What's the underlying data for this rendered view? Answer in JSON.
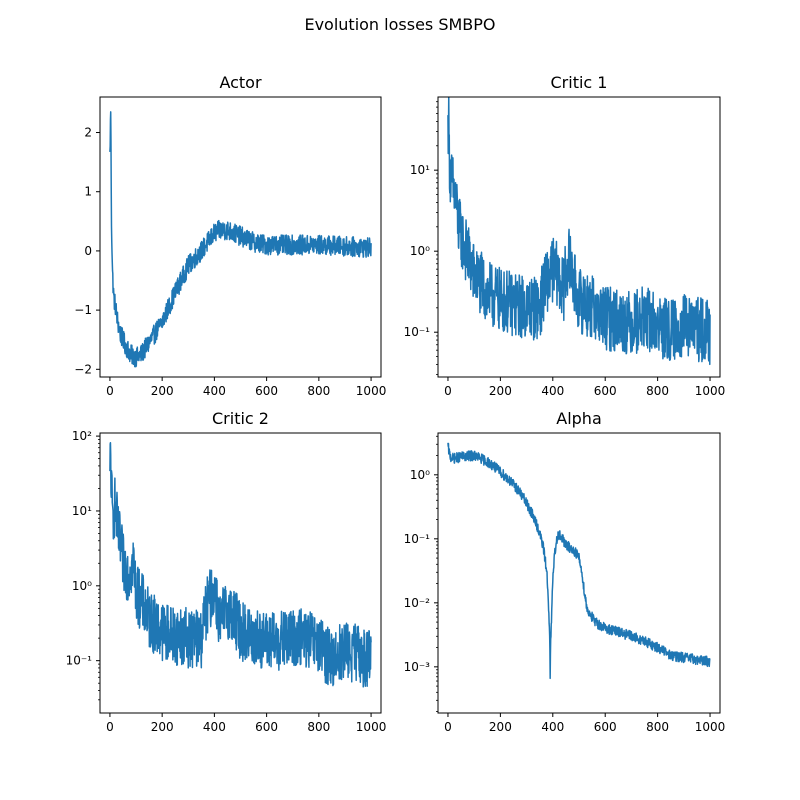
{
  "figure": {
    "suptitle": "Evolution losses SMBPO"
  },
  "colors": {
    "series": "#1f77b4",
    "axes": "#000000",
    "background": "#ffffff"
  },
  "chart_data": [
    {
      "type": "line",
      "title": "Actor",
      "xlabel": "",
      "ylabel": "",
      "yscale": "linear",
      "xlim": [
        -38,
        1038
      ],
      "ylim": [
        -2.13,
        2.6
      ],
      "xticks": [
        0,
        200,
        400,
        600,
        800,
        1000
      ],
      "xtick_labels": [
        "0",
        "200",
        "400",
        "600",
        "800",
        "1000"
      ],
      "yticks": [
        -2,
        -1,
        0,
        1,
        2
      ],
      "ytick_labels": [
        "−2",
        "−1",
        "0",
        "1",
        "2"
      ],
      "grid": false,
      "noise": 0.12,
      "series": [
        {
          "x": [
            0,
            3,
            6,
            10,
            15,
            20,
            30,
            40,
            50,
            60,
            80,
            100,
            120,
            150,
            200,
            250,
            300,
            350,
            400,
            420,
            450,
            500,
            550,
            600,
            700,
            800,
            900,
            1000
          ],
          "values": [
            1.6,
            2.4,
            0.5,
            -0.4,
            -0.8,
            -0.9,
            -1.2,
            -1.4,
            -1.5,
            -1.6,
            -1.75,
            -1.8,
            -1.75,
            -1.55,
            -1.2,
            -0.7,
            -0.25,
            0.0,
            0.3,
            0.35,
            0.35,
            0.25,
            0.15,
            0.1,
            0.1,
            0.1,
            0.08,
            0.05
          ]
        }
      ]
    },
    {
      "type": "line",
      "title": "Critic 1",
      "xlabel": "",
      "ylabel": "",
      "yscale": "log",
      "xlim": [
        -38,
        1038
      ],
      "ylim": [
        0.028,
        80
      ],
      "xticks": [
        0,
        200,
        400,
        600,
        800,
        1000
      ],
      "xtick_labels": [
        "0",
        "200",
        "400",
        "600",
        "800",
        "1000"
      ],
      "yticks": [
        0.1,
        1,
        10
      ],
      "ytick_labels": [
        "10⁻¹",
        "10⁰",
        "10¹"
      ],
      "grid": false,
      "noise": 0.25,
      "series": [
        {
          "x": [
            0,
            2,
            5,
            10,
            20,
            30,
            40,
            60,
            80,
            100,
            150,
            200,
            250,
            300,
            350,
            400,
            420,
            440,
            460,
            480,
            500,
            550,
            600,
            650,
            700,
            750,
            800,
            850,
            900,
            950,
            1000
          ],
          "values": [
            30,
            50,
            15,
            8,
            6,
            4,
            2,
            1.2,
            0.8,
            0.5,
            0.3,
            0.25,
            0.22,
            0.2,
            0.2,
            0.6,
            0.5,
            0.3,
            0.8,
            0.4,
            0.25,
            0.2,
            0.15,
            0.14,
            0.13,
            0.15,
            0.12,
            0.1,
            0.12,
            0.11,
            0.1
          ]
        }
      ]
    },
    {
      "type": "line",
      "title": "Critic 2",
      "xlabel": "",
      "ylabel": "",
      "yscale": "log",
      "xlim": [
        -38,
        1038
      ],
      "ylim": [
        0.02,
        110
      ],
      "xticks": [
        0,
        200,
        400,
        600,
        800,
        1000
      ],
      "xtick_labels": [
        "0",
        "200",
        "400",
        "600",
        "800",
        "1000"
      ],
      "yticks": [
        0.1,
        1,
        10,
        100
      ],
      "ytick_labels": [
        "10⁻¹",
        "10⁰",
        "10¹",
        "10²"
      ],
      "grid": false,
      "noise": 0.25,
      "series": [
        {
          "x": [
            0,
            2,
            5,
            10,
            20,
            30,
            50,
            70,
            90,
            100,
            150,
            200,
            250,
            300,
            350,
            400,
            420,
            450,
            500,
            550,
            600,
            650,
            700,
            750,
            800,
            850,
            900,
            950,
            1000
          ],
          "values": [
            20,
            70,
            20,
            8,
            12,
            5,
            2,
            1.5,
            2,
            0.8,
            0.35,
            0.25,
            0.22,
            0.2,
            0.2,
            0.9,
            0.3,
            0.5,
            0.25,
            0.2,
            0.18,
            0.18,
            0.2,
            0.2,
            0.15,
            0.1,
            0.14,
            0.12,
            0.1
          ]
        }
      ]
    },
    {
      "type": "line",
      "title": "Alpha",
      "xlabel": "",
      "ylabel": "",
      "yscale": "log",
      "xlim": [
        -38,
        1038
      ],
      "ylim": [
        0.00019,
        4.5
      ],
      "xticks": [
        0,
        200,
        400,
        600,
        800,
        1000
      ],
      "xtick_labels": [
        "0",
        "200",
        "400",
        "600",
        "800",
        "1000"
      ],
      "yticks": [
        0.001,
        0.01,
        0.1,
        1
      ],
      "ytick_labels": [
        "10⁻³",
        "10⁻²",
        "10⁻¹",
        "10⁰"
      ],
      "grid": false,
      "noise": 0.05,
      "series": [
        {
          "x": [
            0,
            5,
            10,
            20,
            50,
            100,
            150,
            200,
            250,
            300,
            330,
            350,
            370,
            380,
            385,
            390,
            395,
            400,
            410,
            420,
            430,
            450,
            470,
            490,
            500,
            510,
            520,
            530,
            560,
            600,
            650,
            700,
            750,
            800,
            850,
            900,
            950,
            1000
          ],
          "values": [
            2.8,
            2.2,
            1.9,
            1.8,
            1.9,
            2.0,
            1.6,
            1.1,
            0.7,
            0.35,
            0.2,
            0.12,
            0.05,
            0.02,
            0.006,
            0.0006,
            0.005,
            0.02,
            0.07,
            0.12,
            0.11,
            0.08,
            0.07,
            0.06,
            0.05,
            0.03,
            0.015,
            0.008,
            0.005,
            0.004,
            0.0035,
            0.003,
            0.0025,
            0.002,
            0.0015,
            0.0014,
            0.0013,
            0.0012
          ]
        }
      ]
    }
  ]
}
